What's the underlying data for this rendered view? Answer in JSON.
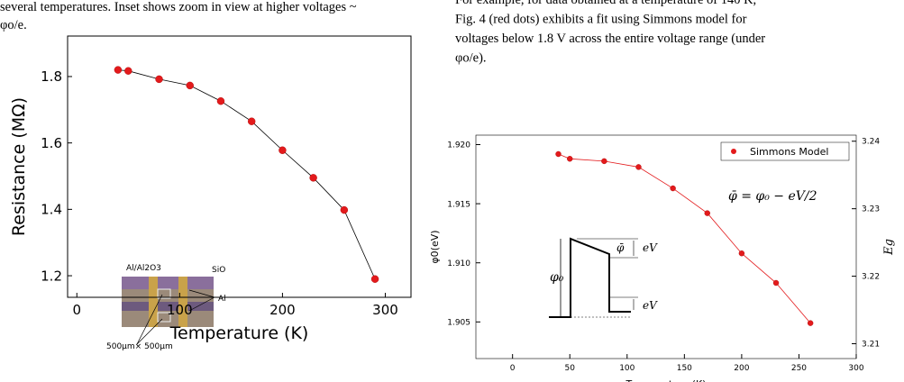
{
  "text_left": [
    "several temperatures. Inset shows zoom in view at higher voltages ~",
    "φo/e."
  ],
  "text_right": [
    "For example, for data obtained at a temperature of 140 K,",
    "Fig. 4 (red dots) exhibits a fit using Simmons model for",
    "voltages below 1.8 V across the entire voltage range (under",
    "φo/e)."
  ],
  "chart_data": [
    {
      "type": "scatter",
      "x_label": "Temperature (K)",
      "y_label": "Resistance (MΩ)",
      "xlim": [
        -9,
        325
      ],
      "ylim": [
        1.135,
        1.922
      ],
      "xticks": [
        0,
        100,
        200,
        300
      ],
      "yticks": [
        1.2,
        1.4,
        1.6,
        1.8
      ],
      "series": [
        {
          "color": "#e31a1c",
          "line_color": "#000000",
          "x": [
            40,
            50,
            80,
            110,
            140,
            170,
            200,
            230,
            260,
            290
          ],
          "values": [
            1.82,
            1.817,
            1.792,
            1.773,
            1.726,
            1.665,
            1.578,
            1.495,
            1.398,
            1.19
          ]
        }
      ],
      "annotations": [
        "Al/Al2O3",
        "SiO",
        "Al",
        "500μm× 500μm"
      ]
    },
    {
      "type": "scatter",
      "x_label": "Temperature (K)",
      "y_label": "φ0(eV)",
      "y2_label": "Eg",
      "xlim": [
        -32,
        300
      ],
      "ylim": [
        1.9019,
        1.9208
      ],
      "y2lim": [
        3.2078,
        3.2409
      ],
      "xticks": [
        0,
        50,
        100,
        150,
        200,
        250,
        300
      ],
      "yticks": [
        {
          "value": 1.92,
          "label": "1.920"
        },
        1.915,
        {
          "value": 1.91,
          "label": "1.910"
        },
        1.905
      ],
      "y2ticks": [
        3.21,
        3.22,
        3.23,
        3.24
      ],
      "legend": "top-right",
      "series": [
        {
          "name": "Simmons Model",
          "color": "#e31a1c",
          "line_color": "#e31a1c",
          "x": [
            40,
            50,
            80,
            110,
            140,
            170,
            200,
            230,
            260
          ],
          "values": [
            1.9192,
            1.9188,
            1.9186,
            1.9181,
            1.9163,
            1.9142,
            1.9108,
            1.9083,
            1.9049
          ]
        }
      ],
      "annotations": [
        "φ̄ = φ₀ − eV/2",
        "φ̄",
        "eV",
        "eV",
        "φ₀"
      ]
    }
  ]
}
